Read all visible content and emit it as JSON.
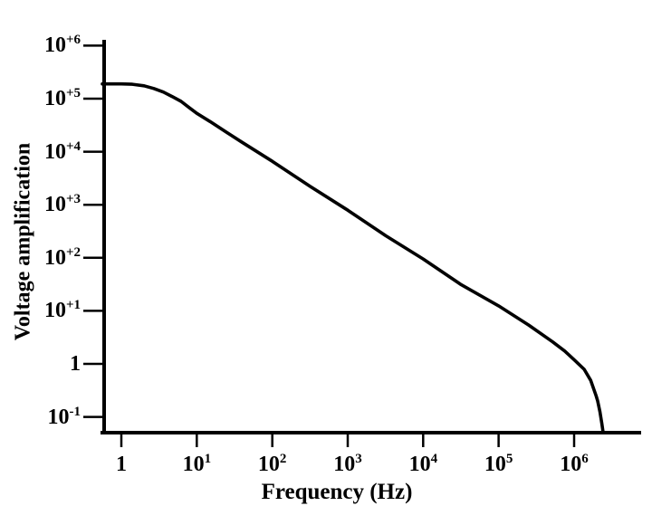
{
  "figure": {
    "background": "#ffffff",
    "ink": "#000000"
  },
  "chart_data": {
    "type": "line",
    "title": "",
    "xlabel": "Frequency (Hz)",
    "ylabel": "Voltage amplification",
    "x_scale": "log",
    "y_scale": "log",
    "xlim": [
      0.56,
      7700000
    ],
    "ylim": [
      0.05,
      1300000
    ],
    "grid": false,
    "legend": "none",
    "x_ticks": [
      {
        "value": 1,
        "base": "1",
        "sup": ""
      },
      {
        "value": 10,
        "base": "10",
        "sup": "1"
      },
      {
        "value": 100,
        "base": "10",
        "sup": "2"
      },
      {
        "value": 1000,
        "base": "10",
        "sup": "3"
      },
      {
        "value": 10000,
        "base": "10",
        "sup": "4"
      },
      {
        "value": 100000,
        "base": "10",
        "sup": "5"
      },
      {
        "value": 1000000,
        "base": "10",
        "sup": "6"
      }
    ],
    "y_ticks": [
      {
        "value": 1000000,
        "base": "10",
        "sup": "+6"
      },
      {
        "value": 100000,
        "base": "10",
        "sup": "+5"
      },
      {
        "value": 10000,
        "base": "10",
        "sup": "+4"
      },
      {
        "value": 1000,
        "base": "10",
        "sup": "+3"
      },
      {
        "value": 100,
        "base": "10",
        "sup": "+2"
      },
      {
        "value": 10,
        "base": "10",
        "sup": "+1"
      },
      {
        "value": 1,
        "base": "1",
        "sup": ""
      },
      {
        "value": 0.1,
        "base": "10",
        "sup": "-1"
      }
    ],
    "series": [
      {
        "name": "voltage-amplification-curve",
        "points": [
          [
            0.56,
            190000
          ],
          [
            1,
            190000
          ],
          [
            1.4,
            187000
          ],
          [
            2,
            175000
          ],
          [
            2.7,
            155000
          ],
          [
            3.6,
            133000
          ],
          [
            4.7,
            110000
          ],
          [
            6.2,
            89000
          ],
          [
            7.9,
            68000
          ],
          [
            10,
            53000
          ],
          [
            15,
            37000
          ],
          [
            25,
            23000
          ],
          [
            40,
            15000
          ],
          [
            100,
            6600
          ],
          [
            320,
            2200
          ],
          [
            1000,
            790
          ],
          [
            3200,
            260
          ],
          [
            10000,
            95
          ],
          [
            32000,
            31
          ],
          [
            100000,
            12.4
          ],
          [
            250000,
            5.4
          ],
          [
            520000,
            2.6
          ],
          [
            750000,
            1.75
          ],
          [
            1000000,
            1.2
          ],
          [
            1360000,
            0.79
          ],
          [
            1660000,
            0.49
          ],
          [
            1960000,
            0.25
          ],
          [
            2050000,
            0.2
          ],
          [
            2200000,
            0.125
          ],
          [
            2330000,
            0.075
          ],
          [
            2430000,
            0.05
          ]
        ]
      }
    ]
  }
}
